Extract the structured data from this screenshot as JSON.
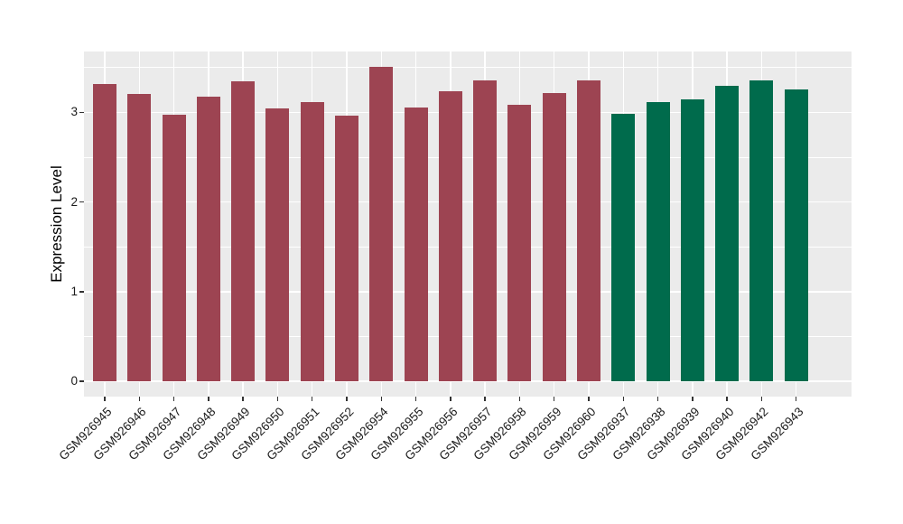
{
  "figure": {
    "background": "#FFFFFF",
    "panel_bg": "#EBEBEB",
    "grid_color": "#FFFFFF",
    "tick_mark_color": "#333333",
    "axis_text_color": "#1A1A1A"
  },
  "chart_data": {
    "type": "bar",
    "title": "",
    "xlabel": "",
    "ylabel": "Expression Level",
    "ylim": [
      -0.17,
      3.68
    ],
    "yticks": [
      0,
      1,
      2,
      3
    ],
    "minor_gridlines": [
      0.5,
      1.5,
      2.5,
      3.5
    ],
    "grid": true,
    "legend_position": "none",
    "categories": [
      "GSM926945",
      "GSM926946",
      "GSM926947",
      "GSM926948",
      "GSM926949",
      "GSM926950",
      "GSM926951",
      "GSM926952",
      "GSM926954",
      "GSM926955",
      "GSM926956",
      "GSM926957",
      "GSM926958",
      "GSM926959",
      "GSM926960",
      "GSM926937",
      "GSM926938",
      "GSM926939",
      "GSM926940",
      "GSM926942",
      "GSM926943"
    ],
    "values": [
      3.32,
      3.21,
      2.97,
      3.18,
      3.35,
      3.05,
      3.12,
      2.96,
      3.51,
      3.06,
      3.24,
      3.36,
      3.09,
      3.22,
      3.36,
      2.98,
      3.12,
      3.15,
      3.3,
      3.36,
      3.26
    ],
    "bar_group": [
      0,
      0,
      0,
      0,
      0,
      0,
      0,
      0,
      0,
      0,
      0,
      0,
      0,
      0,
      0,
      1,
      1,
      1,
      1,
      1,
      1
    ],
    "series": [
      {
        "name": "maroon-group",
        "color": "#9D4452"
      },
      {
        "name": "green-group",
        "color": "#006B4C"
      }
    ]
  }
}
